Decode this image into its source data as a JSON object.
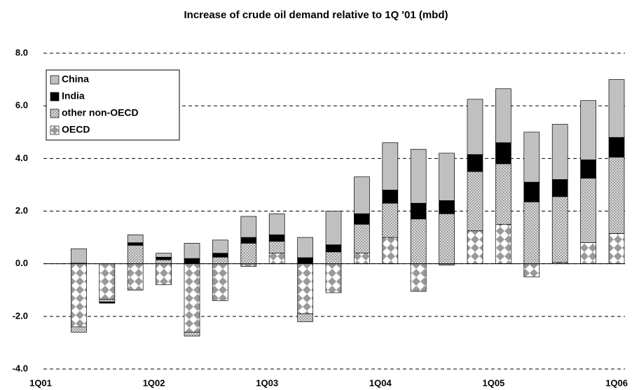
{
  "chart_data": {
    "type": "stacked_bar",
    "title": "Increase of crude oil demand relative to 1Q '01 (mbd)",
    "categories": [
      "1Q01",
      null,
      null,
      null,
      "1Q02",
      null,
      null,
      null,
      "1Q03",
      null,
      null,
      null,
      "1Q04",
      null,
      null,
      null,
      "1Q05",
      null,
      null,
      null,
      "1Q06"
    ],
    "series": [
      {
        "name": "China",
        "color": "#c0c0c0",
        "pattern": "solid",
        "values": [
          0,
          0.55,
          0,
          0.3,
          0.15,
          0.58,
          0.5,
          0.8,
          0.8,
          0.77,
          1.28,
          1.4,
          1.8,
          2.05,
          1.8,
          2.1,
          2.05,
          1.9,
          2.1,
          2.25,
          2.2
        ]
      },
      {
        "name": "India",
        "color": "#000000",
        "pattern": "solid",
        "values": [
          0,
          0.02,
          -0.05,
          0.1,
          0.1,
          0.2,
          0.15,
          0.22,
          0.25,
          0.23,
          0.27,
          0.4,
          0.5,
          0.6,
          0.5,
          0.65,
          0.8,
          0.75,
          0.65,
          0.7,
          0.75
        ]
      },
      {
        "name": "other non-OECD",
        "color": "#b0b0b0",
        "pattern": "dots",
        "values": [
          0,
          -0.2,
          -0.1,
          0.7,
          0.15,
          -0.15,
          0.25,
          0.78,
          0.45,
          -0.3,
          0.45,
          1.1,
          1.3,
          1.7,
          1.9,
          2.25,
          2.3,
          2.35,
          2.5,
          2.45,
          2.9
        ]
      },
      {
        "name": "OECD",
        "color": "#999999",
        "pattern": "diamonds",
        "values": [
          0,
          -2.4,
          -1.35,
          -1.0,
          -0.8,
          -2.6,
          -1.4,
          -0.1,
          0.4,
          -1.9,
          -1.1,
          0.4,
          1.0,
          -1.05,
          -0.05,
          1.25,
          1.5,
          -0.5,
          0.05,
          0.8,
          1.15
        ]
      }
    ],
    "ylim": [
      -4,
      8
    ],
    "yticks": [
      {
        "value": -4,
        "label": "-4.0"
      },
      {
        "value": -2,
        "label": "-2.0"
      },
      {
        "value": 0,
        "label": "0.0"
      },
      {
        "value": 2,
        "label": "2.0"
      },
      {
        "value": 4,
        "label": "4.0"
      },
      {
        "value": 6,
        "label": "6.0"
      },
      {
        "value": 8,
        "label": "8.0"
      }
    ],
    "grid": true,
    "legend": "upper left"
  }
}
